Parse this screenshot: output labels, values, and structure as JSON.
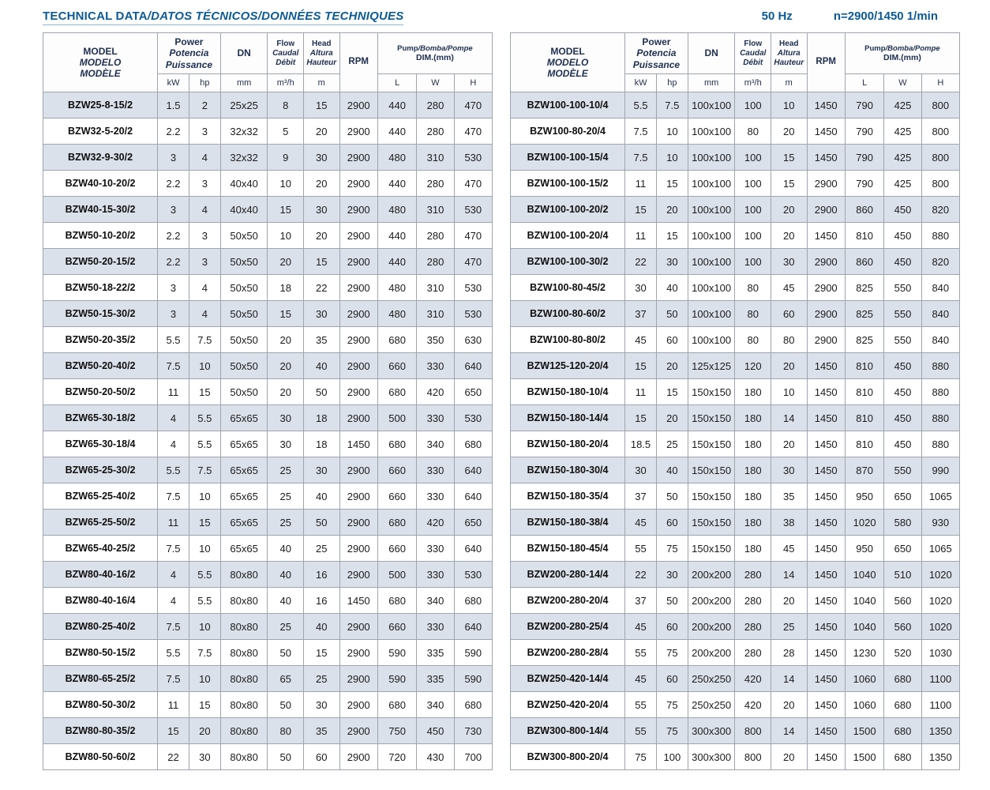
{
  "page": {
    "title_main": "TECHNICAL DATA",
    "title_rest": "/DATOS TÉCNICOS/DONNÉES TECHNIQUES",
    "frequency": "50 Hz",
    "speed": "n=2900/1450 1/min"
  },
  "table_header": {
    "model": [
      "MODEL",
      "MODELO",
      "MODÈLE"
    ],
    "power": [
      "Power",
      "Potencia",
      "Puissance"
    ],
    "flow": [
      "Flow",
      "Caudal",
      "Débit"
    ],
    "head": [
      "Head",
      "Altura",
      "Hauteur"
    ],
    "dn": "DN",
    "rpm": "RPM",
    "dim_en": "Pump",
    "dim_rest": "/Bomba/Pompe",
    "dim_sub": "DIM.(mm)",
    "units": {
      "kw": "kW",
      "hp": "hp",
      "dn": "mm",
      "flow": "m³/h",
      "head": "m",
      "l": "L",
      "w": "W",
      "h": "H"
    }
  },
  "left_rows": [
    [
      "BZW25-8-15/2",
      "1.5",
      "2",
      "25x25",
      "8",
      "15",
      "2900",
      "440",
      "280",
      "470"
    ],
    [
      "BZW32-5-20/2",
      "2.2",
      "3",
      "32x32",
      "5",
      "20",
      "2900",
      "440",
      "280",
      "470"
    ],
    [
      "BZW32-9-30/2",
      "3",
      "4",
      "32x32",
      "9",
      "30",
      "2900",
      "480",
      "310",
      "530"
    ],
    [
      "BZW40-10-20/2",
      "2.2",
      "3",
      "40x40",
      "10",
      "20",
      "2900",
      "440",
      "280",
      "470"
    ],
    [
      "BZW40-15-30/2",
      "3",
      "4",
      "40x40",
      "15",
      "30",
      "2900",
      "480",
      "310",
      "530"
    ],
    [
      "BZW50-10-20/2",
      "2.2",
      "3",
      "50x50",
      "10",
      "20",
      "2900",
      "440",
      "280",
      "470"
    ],
    [
      "BZW50-20-15/2",
      "2.2",
      "3",
      "50x50",
      "20",
      "15",
      "2900",
      "440",
      "280",
      "470"
    ],
    [
      "BZW50-18-22/2",
      "3",
      "4",
      "50x50",
      "18",
      "22",
      "2900",
      "480",
      "310",
      "530"
    ],
    [
      "BZW50-15-30/2",
      "3",
      "4",
      "50x50",
      "15",
      "30",
      "2900",
      "480",
      "310",
      "530"
    ],
    [
      "BZW50-20-35/2",
      "5.5",
      "7.5",
      "50x50",
      "20",
      "35",
      "2900",
      "680",
      "350",
      "630"
    ],
    [
      "BZW50-20-40/2",
      "7.5",
      "10",
      "50x50",
      "20",
      "40",
      "2900",
      "660",
      "330",
      "640"
    ],
    [
      "BZW50-20-50/2",
      "11",
      "15",
      "50x50",
      "20",
      "50",
      "2900",
      "680",
      "420",
      "650"
    ],
    [
      "BZW65-30-18/2",
      "4",
      "5.5",
      "65x65",
      "30",
      "18",
      "2900",
      "500",
      "330",
      "530"
    ],
    [
      "BZW65-30-18/4",
      "4",
      "5.5",
      "65x65",
      "30",
      "18",
      "1450",
      "680",
      "340",
      "680"
    ],
    [
      "BZW65-25-30/2",
      "5.5",
      "7.5",
      "65x65",
      "25",
      "30",
      "2900",
      "660",
      "330",
      "640"
    ],
    [
      "BZW65-25-40/2",
      "7.5",
      "10",
      "65x65",
      "25",
      "40",
      "2900",
      "660",
      "330",
      "640"
    ],
    [
      "BZW65-25-50/2",
      "11",
      "15",
      "65x65",
      "25",
      "50",
      "2900",
      "680",
      "420",
      "650"
    ],
    [
      "BZW65-40-25/2",
      "7.5",
      "10",
      "65x65",
      "40",
      "25",
      "2900",
      "660",
      "330",
      "640"
    ],
    [
      "BZW80-40-16/2",
      "4",
      "5.5",
      "80x80",
      "40",
      "16",
      "2900",
      "500",
      "330",
      "530"
    ],
    [
      "BZW80-40-16/4",
      "4",
      "5.5",
      "80x80",
      "40",
      "16",
      "1450",
      "680",
      "340",
      "680"
    ],
    [
      "BZW80-25-40/2",
      "7.5",
      "10",
      "80x80",
      "25",
      "40",
      "2900",
      "660",
      "330",
      "640"
    ],
    [
      "BZW80-50-15/2",
      "5.5",
      "7.5",
      "80x80",
      "50",
      "15",
      "2900",
      "590",
      "335",
      "590"
    ],
    [
      "BZW80-65-25/2",
      "7.5",
      "10",
      "80x80",
      "65",
      "25",
      "2900",
      "590",
      "335",
      "590"
    ],
    [
      "BZW80-50-30/2",
      "11",
      "15",
      "80x80",
      "50",
      "30",
      "2900",
      "680",
      "340",
      "680"
    ],
    [
      "BZW80-80-35/2",
      "15",
      "20",
      "80x80",
      "80",
      "35",
      "2900",
      "750",
      "450",
      "730"
    ],
    [
      "BZW80-50-60/2",
      "22",
      "30",
      "80x80",
      "50",
      "60",
      "2900",
      "720",
      "430",
      "700"
    ]
  ],
  "right_rows": [
    [
      "BZW100-100-10/4",
      "5.5",
      "7.5",
      "100x100",
      "100",
      "10",
      "1450",
      "790",
      "425",
      "800"
    ],
    [
      "BZW100-80-20/4",
      "7.5",
      "10",
      "100x100",
      "80",
      "20",
      "1450",
      "790",
      "425",
      "800"
    ],
    [
      "BZW100-100-15/4",
      "7.5",
      "10",
      "100x100",
      "100",
      "15",
      "1450",
      "790",
      "425",
      "800"
    ],
    [
      "BZW100-100-15/2",
      "11",
      "15",
      "100x100",
      "100",
      "15",
      "2900",
      "790",
      "425",
      "800"
    ],
    [
      "BZW100-100-20/2",
      "15",
      "20",
      "100x100",
      "100",
      "20",
      "2900",
      "860",
      "450",
      "820"
    ],
    [
      "BZW100-100-20/4",
      "11",
      "15",
      "100x100",
      "100",
      "20",
      "1450",
      "810",
      "450",
      "880"
    ],
    [
      "BZW100-100-30/2",
      "22",
      "30",
      "100x100",
      "100",
      "30",
      "2900",
      "860",
      "450",
      "820"
    ],
    [
      "BZW100-80-45/2",
      "30",
      "40",
      "100x100",
      "80",
      "45",
      "2900",
      "825",
      "550",
      "840"
    ],
    [
      "BZW100-80-60/2",
      "37",
      "50",
      "100x100",
      "80",
      "60",
      "2900",
      "825",
      "550",
      "840"
    ],
    [
      "BZW100-80-80/2",
      "45",
      "60",
      "100x100",
      "80",
      "80",
      "2900",
      "825",
      "550",
      "840"
    ],
    [
      "BZW125-120-20/4",
      "15",
      "20",
      "125x125",
      "120",
      "20",
      "1450",
      "810",
      "450",
      "880"
    ],
    [
      "BZW150-180-10/4",
      "11",
      "15",
      "150x150",
      "180",
      "10",
      "1450",
      "810",
      "450",
      "880"
    ],
    [
      "BZW150-180-14/4",
      "15",
      "20",
      "150x150",
      "180",
      "14",
      "1450",
      "810",
      "450",
      "880"
    ],
    [
      "BZW150-180-20/4",
      "18.5",
      "25",
      "150x150",
      "180",
      "20",
      "1450",
      "810",
      "450",
      "880"
    ],
    [
      "BZW150-180-30/4",
      "30",
      "40",
      "150x150",
      "180",
      "30",
      "1450",
      "870",
      "550",
      "990"
    ],
    [
      "BZW150-180-35/4",
      "37",
      "50",
      "150x150",
      "180",
      "35",
      "1450",
      "950",
      "650",
      "1065"
    ],
    [
      "BZW150-180-38/4",
      "45",
      "60",
      "150x150",
      "180",
      "38",
      "1450",
      "1020",
      "580",
      "930"
    ],
    [
      "BZW150-180-45/4",
      "55",
      "75",
      "150x150",
      "180",
      "45",
      "1450",
      "950",
      "650",
      "1065"
    ],
    [
      "BZW200-280-14/4",
      "22",
      "30",
      "200x200",
      "280",
      "14",
      "1450",
      "1040",
      "510",
      "1020"
    ],
    [
      "BZW200-280-20/4",
      "37",
      "50",
      "200x200",
      "280",
      "20",
      "1450",
      "1040",
      "560",
      "1020"
    ],
    [
      "BZW200-280-25/4",
      "45",
      "60",
      "200x200",
      "280",
      "25",
      "1450",
      "1040",
      "560",
      "1020"
    ],
    [
      "BZW200-280-28/4",
      "55",
      "75",
      "200x200",
      "280",
      "28",
      "1450",
      "1230",
      "520",
      "1030"
    ],
    [
      "BZW250-420-14/4",
      "45",
      "60",
      "250x250",
      "420",
      "14",
      "1450",
      "1060",
      "680",
      "1100"
    ],
    [
      "BZW250-420-20/4",
      "55",
      "75",
      "250x250",
      "420",
      "20",
      "1450",
      "1060",
      "680",
      "1100"
    ],
    [
      "BZW300-800-14/4",
      "55",
      "75",
      "300x300",
      "800",
      "14",
      "1450",
      "1500",
      "680",
      "1350"
    ],
    [
      "BZW300-800-20/4",
      "75",
      "100",
      "300x300",
      "800",
      "20",
      "1450",
      "1500",
      "680",
      "1350"
    ]
  ]
}
